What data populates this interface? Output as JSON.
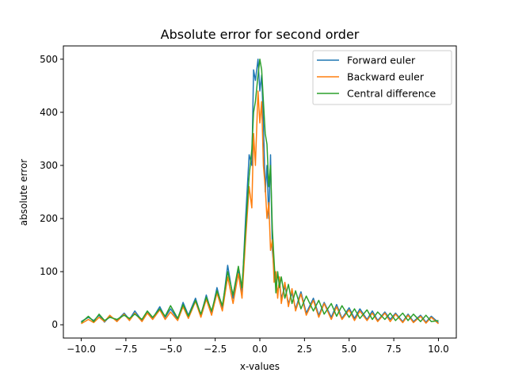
{
  "chart_data": {
    "type": "line",
    "title": "Absolute error for second order",
    "xlabel": "x-values",
    "ylabel": "absolute error",
    "xlim": [
      -11.0,
      11.0
    ],
    "ylim": [
      -25,
      525
    ],
    "xticks": [
      -10.0,
      -7.5,
      -5.0,
      -2.5,
      0.0,
      2.5,
      5.0,
      7.5,
      10.0
    ],
    "xtick_labels": [
      "−10.0",
      "−7.5",
      "−5.0",
      "−2.5",
      "0.0",
      "2.5",
      "5.0",
      "7.5",
      "10.0"
    ],
    "yticks": [
      0,
      100,
      200,
      300,
      400,
      500
    ],
    "ytick_labels": [
      "0",
      "100",
      "200",
      "300",
      "400",
      "500"
    ],
    "grid": false,
    "legend_position": "top-right",
    "series": [
      {
        "name": "Forward euler",
        "color": "#1f77b4",
        "points": [
          [
            -10,
            6
          ],
          [
            -9.6,
            14
          ],
          [
            -9.3,
            8
          ],
          [
            -9,
            18
          ],
          [
            -8.7,
            5
          ],
          [
            -8.4,
            16
          ],
          [
            -8,
            8
          ],
          [
            -7.6,
            22
          ],
          [
            -7.3,
            10
          ],
          [
            -7,
            26
          ],
          [
            -6.6,
            8
          ],
          [
            -6.3,
            24
          ],
          [
            -6,
            12
          ],
          [
            -5.6,
            34
          ],
          [
            -5.3,
            14
          ],
          [
            -5,
            30
          ],
          [
            -4.6,
            10
          ],
          [
            -4.3,
            42
          ],
          [
            -4,
            18
          ],
          [
            -3.6,
            50
          ],
          [
            -3.3,
            18
          ],
          [
            -3,
            56
          ],
          [
            -2.7,
            22
          ],
          [
            -2.4,
            70
          ],
          [
            -2.1,
            30
          ],
          [
            -1.8,
            112
          ],
          [
            -1.5,
            50
          ],
          [
            -1.2,
            104
          ],
          [
            -1,
            60
          ],
          [
            -0.8,
            200
          ],
          [
            -0.6,
            320
          ],
          [
            -0.45,
            300
          ],
          [
            -0.35,
            480
          ],
          [
            -0.25,
            460
          ],
          [
            -0.1,
            500
          ],
          [
            0,
            440
          ],
          [
            0.1,
            470
          ],
          [
            0.2,
            380
          ],
          [
            0.3,
            250
          ],
          [
            0.4,
            300
          ],
          [
            0.5,
            200
          ],
          [
            0.6,
            320
          ],
          [
            0.7,
            140
          ],
          [
            0.8,
            100
          ],
          [
            0.9,
            80
          ],
          [
            1.0,
            60
          ],
          [
            1.1,
            80
          ],
          [
            1.2,
            50
          ],
          [
            1.4,
            72
          ],
          [
            1.6,
            40
          ],
          [
            1.8,
            60
          ],
          [
            2.0,
            30
          ],
          [
            2.3,
            62
          ],
          [
            2.6,
            22
          ],
          [
            3.0,
            50
          ],
          [
            3.3,
            18
          ],
          [
            3.6,
            42
          ],
          [
            4.0,
            14
          ],
          [
            4.3,
            38
          ],
          [
            4.6,
            12
          ],
          [
            5.0,
            32
          ],
          [
            5.3,
            12
          ],
          [
            5.6,
            30
          ],
          [
            6.0,
            10
          ],
          [
            6.3,
            26
          ],
          [
            6.6,
            8
          ],
          [
            7.0,
            24
          ],
          [
            7.3,
            10
          ],
          [
            7.6,
            22
          ],
          [
            8.0,
            6
          ],
          [
            8.3,
            20
          ],
          [
            8.6,
            6
          ],
          [
            9.0,
            18
          ],
          [
            9.3,
            5
          ],
          [
            9.6,
            16
          ],
          [
            10,
            4
          ]
        ]
      },
      {
        "name": "Backward euler",
        "color": "#ff7f0e",
        "points": [
          [
            -10,
            2
          ],
          [
            -9.6,
            10
          ],
          [
            -9.3,
            4
          ],
          [
            -9,
            14
          ],
          [
            -8.7,
            6
          ],
          [
            -8.4,
            18
          ],
          [
            -8,
            6
          ],
          [
            -7.6,
            20
          ],
          [
            -7.3,
            8
          ],
          [
            -7,
            22
          ],
          [
            -6.6,
            6
          ],
          [
            -6.3,
            22
          ],
          [
            -6,
            10
          ],
          [
            -5.6,
            28
          ],
          [
            -5.3,
            10
          ],
          [
            -5,
            24
          ],
          [
            -4.6,
            8
          ],
          [
            -4.3,
            34
          ],
          [
            -4,
            12
          ],
          [
            -3.6,
            44
          ],
          [
            -3.3,
            14
          ],
          [
            -3,
            48
          ],
          [
            -2.7,
            18
          ],
          [
            -2.4,
            60
          ],
          [
            -2.1,
            26
          ],
          [
            -1.8,
            90
          ],
          [
            -1.5,
            40
          ],
          [
            -1.2,
            96
          ],
          [
            -1,
            50
          ],
          [
            -0.8,
            160
          ],
          [
            -0.6,
            260
          ],
          [
            -0.45,
            220
          ],
          [
            -0.35,
            360
          ],
          [
            -0.25,
            300
          ],
          [
            -0.1,
            440
          ],
          [
            0,
            380
          ],
          [
            0.1,
            420
          ],
          [
            0.2,
            300
          ],
          [
            0.3,
            260
          ],
          [
            0.4,
            200
          ],
          [
            0.5,
            230
          ],
          [
            0.6,
            140
          ],
          [
            0.7,
            160
          ],
          [
            0.8,
            80
          ],
          [
            0.9,
            100
          ],
          [
            1.0,
            50
          ],
          [
            1.1,
            90
          ],
          [
            1.2,
            40
          ],
          [
            1.4,
            80
          ],
          [
            1.6,
            34
          ],
          [
            1.8,
            68
          ],
          [
            2.0,
            26
          ],
          [
            2.3,
            58
          ],
          [
            2.6,
            18
          ],
          [
            3.0,
            46
          ],
          [
            3.3,
            14
          ],
          [
            3.6,
            40
          ],
          [
            4.0,
            10
          ],
          [
            4.3,
            34
          ],
          [
            4.6,
            10
          ],
          [
            5.0,
            28
          ],
          [
            5.3,
            8
          ],
          [
            5.6,
            26
          ],
          [
            6.0,
            8
          ],
          [
            6.3,
            22
          ],
          [
            6.6,
            6
          ],
          [
            7.0,
            22
          ],
          [
            7.3,
            6
          ],
          [
            7.6,
            20
          ],
          [
            8.0,
            4
          ],
          [
            8.3,
            18
          ],
          [
            8.6,
            4
          ],
          [
            9.0,
            16
          ],
          [
            9.3,
            3
          ],
          [
            9.6,
            14
          ],
          [
            10,
            2
          ]
        ]
      },
      {
        "name": "Central difference",
        "color": "#2ca02c",
        "points": [
          [
            -10,
            4
          ],
          [
            -9.6,
            16
          ],
          [
            -9.3,
            6
          ],
          [
            -9,
            20
          ],
          [
            -8.7,
            8
          ],
          [
            -8.4,
            14
          ],
          [
            -8,
            10
          ],
          [
            -7.6,
            18
          ],
          [
            -7.3,
            12
          ],
          [
            -7,
            20
          ],
          [
            -6.6,
            10
          ],
          [
            -6.3,
            26
          ],
          [
            -6,
            14
          ],
          [
            -5.6,
            30
          ],
          [
            -5.3,
            16
          ],
          [
            -5,
            36
          ],
          [
            -4.6,
            12
          ],
          [
            -4.3,
            38
          ],
          [
            -4,
            16
          ],
          [
            -3.6,
            46
          ],
          [
            -3.3,
            20
          ],
          [
            -3,
            52
          ],
          [
            -2.7,
            26
          ],
          [
            -2.4,
            64
          ],
          [
            -2.1,
            36
          ],
          [
            -1.8,
            100
          ],
          [
            -1.5,
            56
          ],
          [
            -1.2,
            110
          ],
          [
            -1,
            70
          ],
          [
            -0.8,
            180
          ],
          [
            -0.6,
            280
          ],
          [
            -0.45,
            330
          ],
          [
            -0.35,
            400
          ],
          [
            -0.25,
            420
          ],
          [
            -0.1,
            470
          ],
          [
            0,
            500
          ],
          [
            0.1,
            480
          ],
          [
            0.2,
            420
          ],
          [
            0.3,
            360
          ],
          [
            0.4,
            340
          ],
          [
            0.5,
            260
          ],
          [
            0.6,
            300
          ],
          [
            0.7,
            180
          ],
          [
            0.8,
            120
          ],
          [
            0.9,
            60
          ],
          [
            1.0,
            100
          ],
          [
            1.1,
            70
          ],
          [
            1.2,
            90
          ],
          [
            1.4,
            50
          ],
          [
            1.6,
            76
          ],
          [
            1.8,
            40
          ],
          [
            2.0,
            64
          ],
          [
            2.3,
            30
          ],
          [
            2.6,
            54
          ],
          [
            3.0,
            26
          ],
          [
            3.3,
            46
          ],
          [
            3.6,
            20
          ],
          [
            4.0,
            40
          ],
          [
            4.3,
            16
          ],
          [
            4.6,
            36
          ],
          [
            5.0,
            14
          ],
          [
            5.3,
            30
          ],
          [
            5.6,
            12
          ],
          [
            6.0,
            28
          ],
          [
            6.3,
            10
          ],
          [
            6.6,
            24
          ],
          [
            7.0,
            10
          ],
          [
            7.3,
            22
          ],
          [
            7.6,
            8
          ],
          [
            8.0,
            22
          ],
          [
            8.3,
            8
          ],
          [
            8.6,
            20
          ],
          [
            9.0,
            6
          ],
          [
            9.3,
            18
          ],
          [
            9.6,
            6
          ],
          [
            10,
            8
          ]
        ]
      }
    ]
  }
}
